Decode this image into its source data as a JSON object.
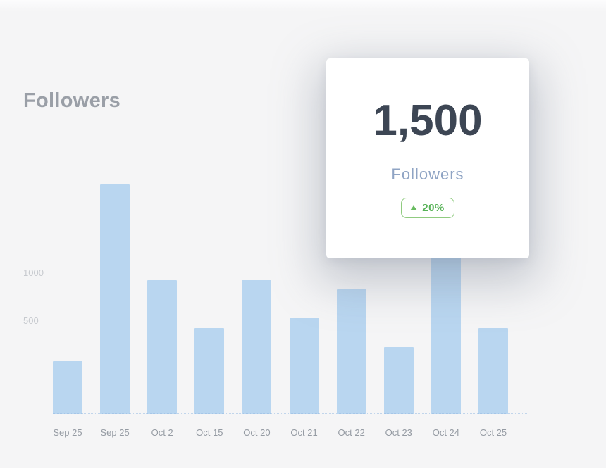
{
  "colors": {
    "background": "#f5f5f6",
    "bar_blue": "#b9d6f0",
    "title_gray": "#9a9fa7",
    "axis_tick_gray": "#c7cacf",
    "x_label_gray": "#959ba3",
    "card_number_dark": "#3d4654",
    "card_label_blue_gray": "#8fa4c4",
    "badge_green": "#57b257",
    "badge_border_green": "#90cb80"
  },
  "chart_data": {
    "type": "bar",
    "title": "Followers",
    "categories": [
      "Sep 25",
      "Sep 25",
      "Oct 2",
      "Oct 15",
      "Oct 20",
      "Oct 21",
      "Oct 22",
      "Oct 23",
      "Oct 24",
      "Oct 25"
    ],
    "values": [
      550,
      2400,
      1400,
      900,
      1400,
      1000,
      1300,
      700,
      1700,
      900
    ],
    "xlabel": "",
    "ylabel": "",
    "y_ticks": [
      500,
      1000
    ],
    "ylim": [
      0,
      2500
    ],
    "grid": false,
    "legend": false,
    "bar_color": "#b9d6f0",
    "note_partially_hidden_bar": "Oct 24 bar top is hidden behind the summary card; value estimated"
  },
  "summary_card": {
    "value": "1,500",
    "label": "Followers",
    "badge": {
      "text": "20%",
      "direction": "up",
      "icon": "triangle-up-icon"
    }
  }
}
